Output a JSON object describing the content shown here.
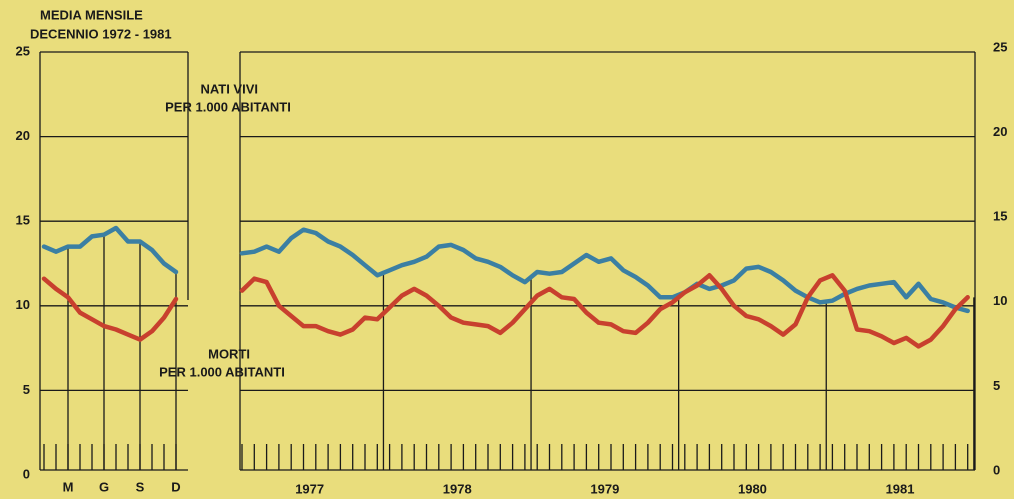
{
  "chart_data": [
    {
      "type": "line",
      "title": "MEDIA MENSILE",
      "subtitle": "DECENNIO 1972 - 1981",
      "categories": [
        null,
        null,
        "M",
        null,
        null,
        "G",
        null,
        null,
        "S",
        null,
        null,
        "D"
      ],
      "series": [
        {
          "color": "#3b7fa3",
          "values": [
            13.5,
            13.2,
            13.5,
            13.5,
            14.1,
            14.2,
            14.6,
            13.8,
            13.8,
            13.3,
            12.5,
            12.0
          ]
        },
        {
          "color": "#c8402e",
          "values": [
            11.6,
            11.0,
            10.5,
            9.6,
            9.2,
            8.8,
            8.6,
            8.3,
            8.0,
            8.5,
            9.3,
            10.4
          ]
        }
      ],
      "ylim": [
        0,
        25
      ],
      "yticks": [
        0,
        5,
        10,
        15,
        20,
        25
      ],
      "grid": true
    },
    {
      "type": "line",
      "categories": [
        "1977",
        "1978",
        "1979",
        "1980",
        "1981"
      ],
      "series": [
        {
          "name": "NATI VIVI",
          "unit_label": "PER 1.000 ABITANTI",
          "color": "#3b7fa3",
          "values": [
            [
              13.1,
              13.2,
              13.5,
              13.2,
              14.0,
              14.5,
              14.3,
              13.8,
              13.5,
              13.0,
              12.4,
              11.8
            ],
            [
              12.1,
              12.4,
              12.6,
              12.9,
              13.5,
              13.6,
              13.3,
              12.8,
              12.6,
              12.3,
              11.8,
              11.4
            ],
            [
              12.0,
              11.9,
              12.0,
              12.5,
              13.0,
              12.6,
              12.8,
              12.1,
              11.7,
              11.2,
              10.5,
              10.5
            ],
            [
              10.8,
              11.3,
              11.0,
              11.2,
              11.5,
              12.2,
              12.3,
              12.0,
              11.5,
              10.9,
              10.5,
              10.2
            ],
            [
              10.3,
              10.7,
              11.0,
              11.2,
              11.3,
              11.4,
              10.5,
              11.3,
              10.4,
              10.2,
              9.9,
              9.7
            ]
          ]
        },
        {
          "name": "MORTI",
          "unit_label": "PER 1.000 ABITANTI",
          "color": "#c8402e",
          "values": [
            [
              10.9,
              11.6,
              11.4,
              10.0,
              9.4,
              8.8,
              8.8,
              8.5,
              8.3,
              8.6,
              9.3,
              9.2
            ],
            [
              9.9,
              10.6,
              11.0,
              10.6,
              10.0,
              9.3,
              9.0,
              8.9,
              8.8,
              8.4,
              9.0,
              9.8
            ],
            [
              10.6,
              11.0,
              10.5,
              10.4,
              9.6,
              9.0,
              8.9,
              8.5,
              8.4,
              9.0,
              9.8,
              10.2
            ],
            [
              10.8,
              11.2,
              11.8,
              11.0,
              10.0,
              9.4,
              9.2,
              8.8,
              8.3,
              8.9,
              10.5,
              11.5
            ],
            [
              11.8,
              10.9,
              8.6,
              8.5,
              8.2,
              7.8,
              8.1,
              7.6,
              8.0,
              8.8,
              9.8,
              10.5
            ]
          ]
        }
      ],
      "ylim": [
        0,
        25
      ],
      "yticks": [
        0,
        5,
        10,
        15,
        20,
        25
      ],
      "grid": true
    }
  ]
}
